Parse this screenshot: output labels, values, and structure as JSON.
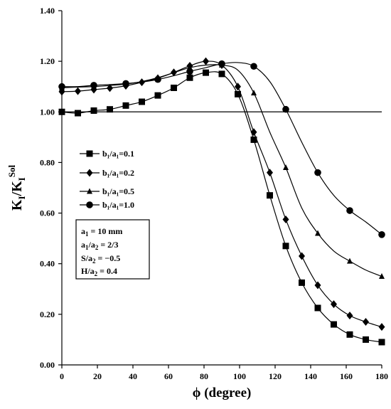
{
  "chart_data": {
    "type": "line",
    "title": "",
    "ylabel": {
      "base": "K",
      "base_sub": "I",
      "slash": "/K",
      "den_sub": "I",
      "den_sup": "Sol"
    },
    "xlabel": {
      "symbol": "ϕ",
      "unit": " (degree)"
    },
    "xlim": [
      0,
      180
    ],
    "ylim": [
      0.0,
      1.4
    ],
    "xticks": [
      "0",
      "20",
      "40",
      "60",
      "80",
      "100",
      "120",
      "140",
      "160",
      "180"
    ],
    "yticks": [
      "0.00",
      "0.20",
      "0.40",
      "0.60",
      "0.80",
      "1.00",
      "1.20",
      "1.40"
    ],
    "reference_line_y": 1.0,
    "legend_position": "center-left",
    "series": [
      {
        "name": "b₁/a₁=0.1",
        "marker": "square",
        "x": [
          0,
          9,
          18,
          27,
          36,
          45,
          54,
          63,
          72,
          81,
          90,
          99,
          108,
          117,
          126,
          135,
          144,
          153,
          162,
          171,
          180
        ],
        "y": [
          1.0,
          0.995,
          1.005,
          1.01,
          1.025,
          1.04,
          1.065,
          1.095,
          1.135,
          1.155,
          1.15,
          1.07,
          0.89,
          0.67,
          0.47,
          0.325,
          0.225,
          0.16,
          0.12,
          0.1,
          0.09
        ]
      },
      {
        "name": "b₁/a₁=0.2",
        "marker": "diamond",
        "x": [
          0,
          9,
          18,
          27,
          36,
          45,
          54,
          63,
          72,
          81,
          90,
          99,
          108,
          117,
          126,
          135,
          144,
          153,
          162,
          171,
          180
        ],
        "y": [
          1.08,
          1.082,
          1.088,
          1.094,
          1.103,
          1.117,
          1.133,
          1.156,
          1.182,
          1.2,
          1.185,
          1.1,
          0.92,
          0.76,
          0.575,
          0.43,
          0.315,
          0.24,
          0.195,
          0.17,
          0.15
        ]
      },
      {
        "name": "b₁/a₁=0.5",
        "marker": "triangle",
        "x": [
          0,
          9,
          18,
          27,
          36,
          45,
          54,
          63,
          72,
          81,
          90,
          99,
          108,
          117,
          126,
          135,
          144,
          153,
          162,
          171,
          180
        ],
        "y": [
          1.095,
          1.098,
          1.1,
          1.104,
          1.11,
          1.12,
          1.135,
          1.155,
          1.175,
          1.185,
          1.185,
          1.165,
          1.075,
          0.92,
          0.78,
          0.62,
          0.52,
          0.45,
          0.41,
          0.375,
          0.35
        ]
      },
      {
        "name": "b₁/a₁=1.0",
        "marker": "circle",
        "x": [
          0,
          9,
          18,
          27,
          36,
          45,
          54,
          63,
          72,
          81,
          90,
          99,
          108,
          117,
          126,
          135,
          144,
          153,
          162,
          171,
          180
        ],
        "y": [
          1.1,
          1.1,
          1.105,
          1.108,
          1.112,
          1.118,
          1.128,
          1.143,
          1.16,
          1.175,
          1.19,
          1.195,
          1.18,
          1.12,
          1.01,
          0.88,
          0.76,
          0.67,
          0.61,
          0.565,
          0.515
        ]
      }
    ],
    "parameters": [
      {
        "text": "a",
        "sub": "1",
        "rest": " = 10 mm"
      },
      {
        "text": "a",
        "sub": "1",
        "mid": "/a",
        "sub2": "2",
        "rest": " = 2/3"
      },
      {
        "text": "S/a",
        "sub": "2",
        "rest": " = −0.5"
      },
      {
        "text": "H/a",
        "sub": "2",
        "rest": " = 0.4"
      }
    ]
  }
}
